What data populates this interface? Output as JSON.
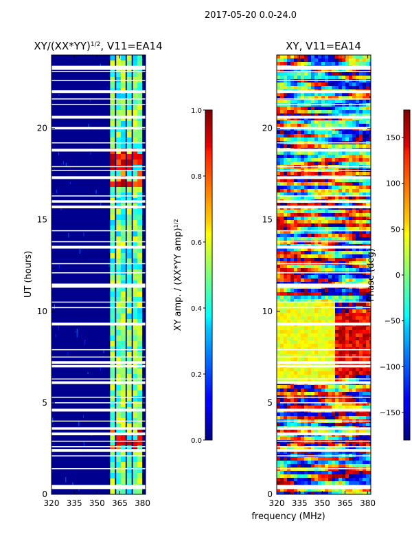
{
  "suptitle": "2017-05-20 0.0-24.0",
  "xlabel": "frequency (MHz)",
  "chart_data": [
    {
      "type": "heatmap",
      "id": "amp",
      "title_main": "XY/(XX*YY)",
      "title_sup": "1/2",
      "title_tail": ", V11=EA14",
      "ylabel": "UT (hours)",
      "xlim": [
        320,
        382
      ],
      "ylim": [
        0,
        24
      ],
      "xticks": [
        320,
        335,
        350,
        365,
        380
      ],
      "yticks": [
        0,
        5,
        10,
        15,
        20
      ],
      "band_channels_mhz": [
        360,
        364,
        367,
        371,
        375,
        378
      ],
      "high_amp_hours": [
        [
          16.7,
          17.1
        ],
        [
          17.9,
          18.6
        ]
      ],
      "colorbar": {
        "label_main": "XY amp. / (XX*YY amp)",
        "label_sup": "1/2",
        "range": [
          0.0,
          1.0
        ],
        "ticks": [
          "0.0",
          "0.2",
          "0.4",
          "0.6",
          "0.8",
          "1.0"
        ],
        "colormap": "jet"
      }
    },
    {
      "type": "heatmap",
      "id": "phase",
      "title": "XY, V11=EA14",
      "xlim": [
        320,
        382
      ],
      "ylim": [
        0,
        24
      ],
      "xticks": [
        320,
        335,
        350,
        365,
        380
      ],
      "yticks": [
        0,
        5,
        10,
        15,
        20
      ],
      "colorbar": {
        "label": "Phase (deg)",
        "range": [
          -180,
          180
        ],
        "ticks": [
          "−150",
          "−100",
          "−50",
          "0",
          "50",
          "100",
          "150"
        ],
        "colormap": "jet"
      }
    }
  ],
  "flagged_gaps_hours": [
    0.4,
    1.4,
    2.1,
    2.4,
    2.6,
    2.9,
    3.3,
    3.6,
    4.0,
    4.6,
    5.0,
    5.3,
    6.1,
    6.3,
    7.0,
    7.2,
    7.5,
    7.9,
    9.3,
    10.2,
    10.5,
    11.4,
    12.1,
    12.6,
    13.5,
    13.8,
    14.4,
    15.7,
    16.0,
    16.3,
    17.3,
    17.7,
    17.9,
    18.8,
    19.2,
    20.0,
    20.6,
    21.3,
    21.6,
    22.0,
    22.6,
    23.1,
    23.3
  ]
}
